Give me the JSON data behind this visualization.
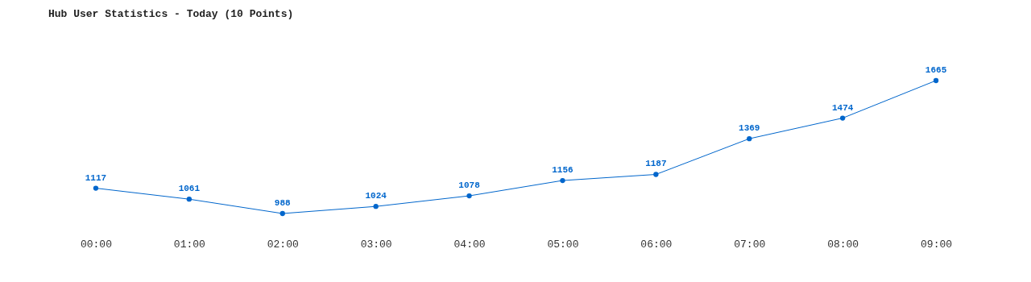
{
  "chart_data": {
    "type": "line",
    "title": "Hub User Statistics - Today (10 Points)",
    "categories": [
      "00:00",
      "01:00",
      "02:00",
      "03:00",
      "04:00",
      "05:00",
      "06:00",
      "07:00",
      "08:00",
      "09:00"
    ],
    "series": [
      {
        "color": "#0066cc",
        "values": [
          1117,
          1061,
          988,
          1024,
          1078,
          1156,
          1187,
          1369,
          1474,
          1665
        ]
      }
    ],
    "data_labels": true,
    "marker": "circle",
    "line_style": "solid",
    "grid": false,
    "legend": false
  }
}
